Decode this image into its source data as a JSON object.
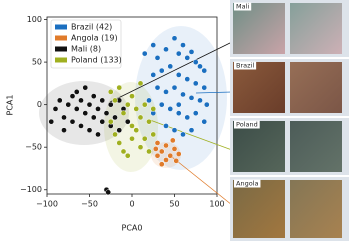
{
  "chart_data": {
    "type": "scatter",
    "xlabel": "PCA0",
    "ylabel": "PCA1",
    "xlim": [
      -100,
      100
    ],
    "ylim": [
      -105,
      103
    ],
    "xticks": [
      {
        "value": -100,
        "label": "−100"
      },
      {
        "value": -50,
        "label": "−50"
      },
      0,
      50,
      100
    ],
    "yticks": [
      {
        "value": -100,
        "label": "−100"
      },
      {
        "value": -50,
        "label": "−50"
      },
      0,
      50,
      100
    ],
    "legend": "upper left",
    "series": [
      {
        "name": "Brazil (42)",
        "color": "#1b6fc0",
        "x": [
          15,
          25,
          30,
          40,
          50,
          55,
          60,
          65,
          70,
          75,
          80,
          85,
          45,
          35,
          25,
          55,
          65,
          75,
          85,
          30,
          40,
          50,
          60,
          70,
          80,
          88,
          20,
          35,
          45,
          55,
          65,
          75,
          85,
          40,
          50,
          60,
          25,
          70,
          10,
          55
        ],
        "values": [
          60,
          70,
          55,
          65,
          78,
          60,
          70,
          55,
          62,
          50,
          45,
          40,
          45,
          40,
          35,
          35,
          30,
          25,
          20,
          20,
          15,
          20,
          12,
          8,
          5,
          0,
          5,
          0,
          -5,
          -10,
          -15,
          -10,
          -20,
          -25,
          -30,
          -35,
          -10,
          -30,
          25,
          0
        ]
      },
      {
        "name": "Angola (19)",
        "color": "#e07b2a",
        "x": [
          30,
          35,
          40,
          45,
          50,
          55,
          40,
          30,
          35,
          48,
          52,
          28
        ],
        "values": [
          -45,
          -55,
          -48,
          -60,
          -52,
          -58,
          -65,
          -60,
          -70,
          -42,
          -66,
          -52
        ]
      },
      {
        "name": "Mali (8)",
        "color": "#111111",
        "x": [
          -90,
          -85,
          -80,
          -75,
          -70,
          -70,
          -65,
          -60,
          -60,
          -55,
          -50,
          -50,
          -45,
          -45,
          -40,
          -40,
          -35,
          -35,
          -30,
          -25,
          -25,
          -20,
          -15,
          -10,
          -80,
          -65,
          -55,
          -95,
          -30,
          -28,
          -5,
          -15
        ],
        "values": [
          -5,
          5,
          -15,
          0,
          10,
          -20,
          -5,
          5,
          -25,
          -10,
          0,
          -30,
          10,
          -15,
          -5,
          -35,
          5,
          -20,
          -10,
          0,
          -25,
          -15,
          5,
          -5,
          -30,
          15,
          20,
          -20,
          -100,
          -103,
          -20,
          -30
        ]
      },
      {
        "name": "Poland (133)",
        "color": "#a0b020",
        "x": [
          -25,
          -20,
          -15,
          -10,
          -5,
          0,
          5,
          10,
          15,
          20,
          -20,
          -15,
          -10,
          0,
          5,
          10,
          15,
          20,
          25,
          -5,
          -25,
          0,
          10,
          25
        ],
        "values": [
          15,
          5,
          20,
          -10,
          0,
          10,
          -5,
          -15,
          0,
          -20,
          -35,
          -45,
          -55,
          -40,
          -30,
          -50,
          -40,
          -55,
          -35,
          -60,
          -20,
          -25,
          25,
          -5
        ]
      }
    ],
    "thumbnails": [
      "Mali",
      "Brazil",
      "Poland",
      "Angola"
    ]
  }
}
